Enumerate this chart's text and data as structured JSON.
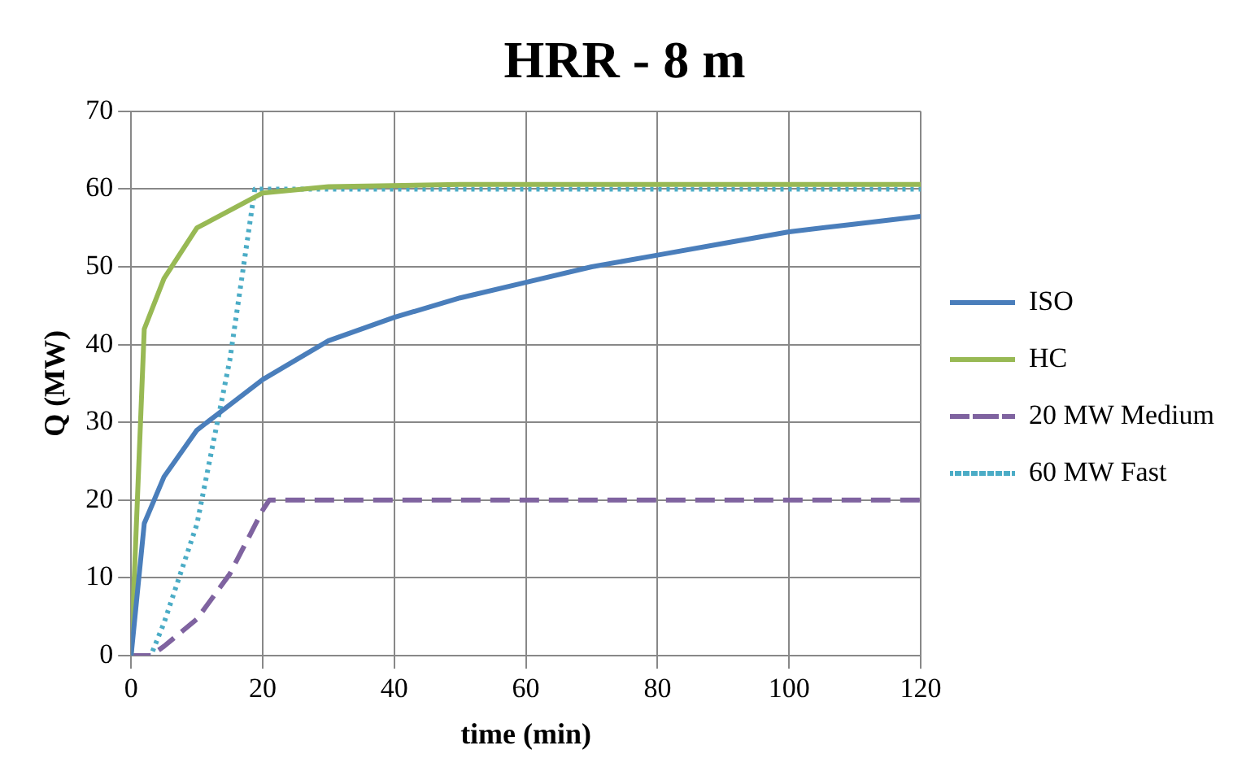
{
  "chart_data": {
    "type": "line",
    "title": "HRR - 8 m",
    "xlabel": "time (min)",
    "ylabel": "Q (MW)",
    "xlim": [
      0,
      120
    ],
    "xticks": [
      0,
      20,
      40,
      60,
      80,
      100,
      120
    ],
    "ylim": [
      0,
      70
    ],
    "yticks": [
      0,
      10,
      20,
      30,
      40,
      50,
      60,
      70
    ],
    "grid": true,
    "legend": "right",
    "marker": "none",
    "series": [
      {
        "name": "ISO",
        "color": "#4a7ebb",
        "line_style": "solid",
        "x": [
          0,
          2,
          5,
          10,
          20,
          30,
          40,
          50,
          60,
          70,
          80,
          90,
          100,
          110,
          120
        ],
        "values": [
          0,
          17,
          23,
          29,
          35.5,
          40.5,
          43.5,
          46,
          48,
          50,
          51.5,
          53,
          54.5,
          55.5,
          56.5
        ]
      },
      {
        "name": "HC",
        "color": "#98b954",
        "line_style": "solid",
        "x": [
          0,
          2,
          5,
          10,
          20,
          30,
          50,
          120
        ],
        "values": [
          0,
          42,
          48.5,
          55,
          59.5,
          60.3,
          60.6,
          60.6
        ]
      },
      {
        "name": "20 MW Medium",
        "color": "#7f63a0",
        "line_style": "dashed",
        "x": [
          0,
          3,
          5,
          10,
          15,
          20,
          21,
          120
        ],
        "values": [
          0,
          0,
          1.2,
          4.7,
          10.5,
          18.7,
          20,
          20
        ]
      },
      {
        "name": "60 MW Fast",
        "color": "#4bacc6",
        "line_style": "dotted",
        "x": [
          0,
          3,
          5,
          10,
          15,
          18.8,
          120
        ],
        "values": [
          0,
          0,
          4.2,
          16.9,
          38,
          60,
          60
        ]
      }
    ]
  }
}
